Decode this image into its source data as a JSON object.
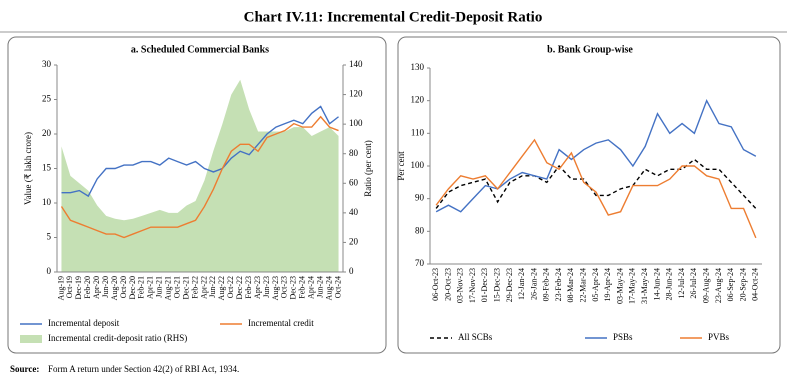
{
  "title": "Chart IV.11: Incremental Credit-Deposit Ratio",
  "source_label": "Source:",
  "source": "Form A return under Section 42(2) of RBI Act, 1934.",
  "chart_data": [
    {
      "type": "line",
      "title": "a. Scheduled Commercial Banks",
      "ylabel": "Value (₹ lakh crore)",
      "y2label": "Ratio (per cent)",
      "categories": [
        "Aug-19",
        "Oct-19",
        "Dec-19",
        "Feb-20",
        "Apr-20",
        "Jun-20",
        "Aug-20",
        "Oct-20",
        "Dec-20",
        "Feb-21",
        "Apr-21",
        "Jun-21",
        "Aug-21",
        "Oct-21",
        "Dec-21",
        "Feb-22",
        "Apr-22",
        "Jun-22",
        "Aug-22",
        "Oct-22",
        "Dec-22",
        "Feb-23",
        "Apr-23",
        "Jun-23",
        "Aug-23",
        "Oct-23",
        "Dec-23",
        "Feb-24",
        "Apr-24",
        "Jun-24",
        "Aug-24",
        "Oct-24"
      ],
      "ylim": [
        0,
        30
      ],
      "yticks": [
        0,
        5,
        10,
        15,
        20,
        25,
        30
      ],
      "y2lim": [
        0,
        140
      ],
      "y2ticks": [
        0,
        20,
        40,
        60,
        80,
        100,
        120,
        140
      ],
      "series": [
        {
          "name": "Incremental credit-deposit ratio (RHS)",
          "color": "#c5e0b4",
          "kind": "area",
          "axis": "y2",
          "values": [
            85,
            65,
            60,
            55,
            45,
            38,
            36,
            35,
            36,
            38,
            40,
            42,
            40,
            40,
            45,
            48,
            62,
            82,
            100,
            120,
            130,
            110,
            95,
            95,
            95,
            95,
            98,
            98,
            92,
            95,
            98,
            92
          ]
        },
        {
          "name": "Incremental deposit",
          "color": "#4472c4",
          "kind": "line",
          "values": [
            11.5,
            11.5,
            11.8,
            11,
            13.5,
            15,
            15,
            15.5,
            15.5,
            16,
            16,
            15.5,
            16.5,
            16,
            15.5,
            16,
            15,
            14.5,
            15,
            16.5,
            17.5,
            17,
            18.5,
            20,
            21,
            21.5,
            22,
            21.5,
            23,
            24,
            21.5,
            22.5
          ]
        },
        {
          "name": "Incremental credit",
          "color": "#ed7d31",
          "kind": "line",
          "values": [
            9.5,
            7.5,
            7,
            6.5,
            6,
            5.5,
            5.5,
            5,
            5.5,
            6,
            6.5,
            6.5,
            6.5,
            6.5,
            7,
            7.5,
            9.5,
            12,
            15,
            17.5,
            18.5,
            18.5,
            17.5,
            19.5,
            20,
            20.5,
            21.5,
            21,
            21,
            22.5,
            21,
            20.5
          ]
        }
      ]
    },
    {
      "type": "line",
      "title": "b. Bank Group-wise",
      "ylabel": "Per cent",
      "categories": [
        "06-Oct-23",
        "20-Oct-23",
        "03-Nov-23",
        "17-Nov-23",
        "01-Dec-23",
        "15-Dec-23",
        "29-Dec-23",
        "12-Jan-24",
        "26-Jan-24",
        "09-Feb-24",
        "23-Feb-24",
        "08-Mar-24",
        "22-Mar-24",
        "05-Apr-24",
        "19-Apr-24",
        "03-May-24",
        "17-May-24",
        "31-May-24",
        "14-Jun-24",
        "28-Jun-24",
        "12-Jul-24",
        "26-Jul-24",
        "09-Aug-24",
        "23-Aug-24",
        "06-Sep-24",
        "20-Sep-24",
        "04-Oct-24"
      ],
      "ylim": [
        70,
        130
      ],
      "yticks": [
        70,
        80,
        90,
        100,
        110,
        120,
        130
      ],
      "series": [
        {
          "name": "All SCBs",
          "color": "#000000",
          "kind": "line",
          "dash": true,
          "values": [
            87,
            92,
            94,
            95,
            96,
            89,
            95,
            97,
            97,
            95,
            100,
            96,
            96,
            91,
            91,
            93,
            94,
            99,
            97,
            99,
            99,
            102,
            99,
            99,
            95,
            91,
            87
          ]
        },
        {
          "name": "PSBs",
          "color": "#4472c4",
          "kind": "line",
          "values": [
            86,
            88,
            86,
            90,
            94,
            93,
            96,
            98,
            97,
            96,
            105,
            102,
            105,
            107,
            108,
            105,
            100,
            106,
            116,
            110,
            113,
            110,
            120,
            113,
            112,
            105,
            103
          ]
        },
        {
          "name": "PVBs",
          "color": "#ed7d31",
          "kind": "line",
          "values": [
            88,
            93,
            97,
            96,
            97,
            93,
            98,
            103,
            108,
            101,
            99,
            104,
            95,
            92,
            85,
            86,
            94,
            94,
            94,
            96,
            100,
            100,
            97,
            96,
            87,
            87,
            78
          ]
        }
      ]
    }
  ]
}
